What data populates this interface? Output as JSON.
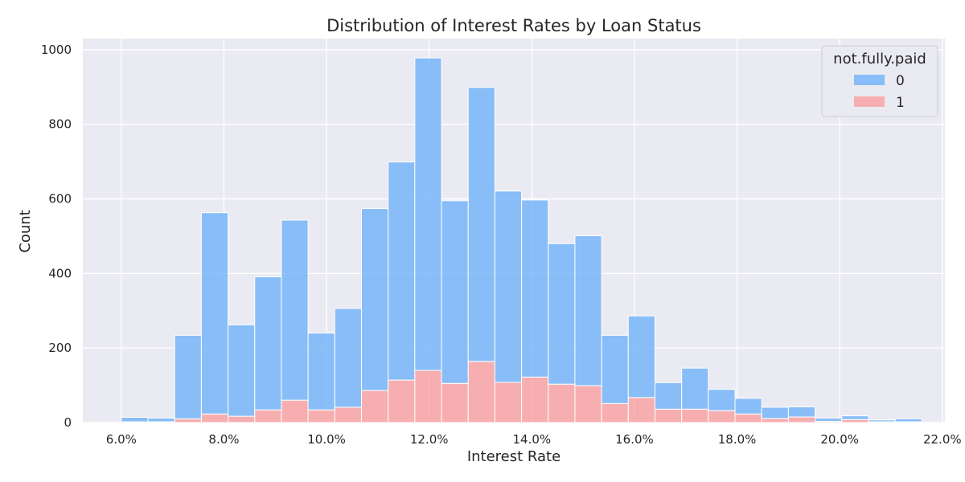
{
  "chart_data": {
    "type": "bar",
    "stacked": true,
    "title": "Distribution of Interest Rates by Loan Status",
    "xlabel": "Interest Rate",
    "ylabel": "Count",
    "xlim": [
      0.0525,
      0.2205
    ],
    "ylim": [
      0,
      1030
    ],
    "x_ticks": [
      0.06,
      0.08,
      0.1,
      0.12,
      0.14,
      0.16,
      0.18,
      0.2,
      0.22
    ],
    "x_tick_labels": [
      "6.0%",
      "8.0%",
      "10.0%",
      "12.0%",
      "14.0%",
      "16.0%",
      "18.0%",
      "20.0%",
      "22.0%"
    ],
    "y_ticks": [
      0,
      200,
      400,
      600,
      800,
      1000
    ],
    "y_tick_labels": [
      "0",
      "200",
      "400",
      "600",
      "800",
      "1000"
    ],
    "bin_width": 0.0052,
    "bin_starts": [
      0.06,
      0.0652,
      0.0704,
      0.0756,
      0.0808,
      0.086,
      0.0912,
      0.0964,
      0.1016,
      0.1068,
      0.112,
      0.1172,
      0.1224,
      0.1276,
      0.1328,
      0.138,
      0.1432,
      0.1484,
      0.1536,
      0.1588,
      0.164,
      0.1692,
      0.1744,
      0.1796,
      0.1848,
      0.19,
      0.1952,
      0.2004,
      0.2056,
      0.2108
    ],
    "series": [
      {
        "name": "0",
        "color": "#6fb1f8",
        "values": [
          12,
          10,
          224,
          540,
          245,
          357,
          483,
          206,
          265,
          488,
          585,
          838,
          490,
          735,
          513,
          475,
          377,
          402,
          183,
          219,
          71,
          110,
          57,
          42,
          30,
          27,
          9,
          10,
          5,
          8
        ]
      },
      {
        "name": "1",
        "color": "#fb9a9a",
        "values": [
          2,
          2,
          10,
          23,
          17,
          34,
          60,
          34,
          41,
          86,
          114,
          140,
          105,
          164,
          108,
          122,
          103,
          99,
          51,
          67,
          36,
          36,
          32,
          23,
          11,
          15,
          3,
          8,
          2,
          2
        ]
      }
    ],
    "legend": {
      "title": "not.fully.paid",
      "position": "top-right",
      "entries": [
        "0",
        "1"
      ]
    },
    "grid": true,
    "background": "#eaeaf2"
  }
}
